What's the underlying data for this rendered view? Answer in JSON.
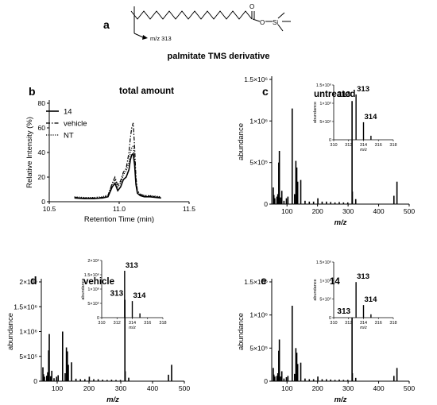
{
  "figure": {
    "panel_a": {
      "letter": "a",
      "compound_title": "palmitate TMS derivative",
      "fragment_label": "m/z 313",
      "atom_O": "O",
      "atom_O2": "O",
      "atom_Si": "Si"
    }
  },
  "chart_data": [
    {
      "id": "b",
      "letter": "b",
      "type": "line",
      "title": "total amount",
      "xlabel": "Retention Time (min)",
      "ylabel": "Relative Intensity (%)",
      "xlim": [
        10.5,
        11.5
      ],
      "ylim": [
        0,
        80
      ],
      "xticks": [
        10.5,
        11.0,
        11.5
      ],
      "xtick_labels": [
        "10.5",
        "11.0",
        "11.5"
      ],
      "yticks": [
        0,
        20,
        40,
        60,
        80
      ],
      "ytick_labels": [
        "0",
        "20",
        "40",
        "60",
        "80"
      ],
      "legend_position": "top-left",
      "series": [
        {
          "name": "14",
          "style": "solid",
          "x": [
            10.68,
            10.75,
            10.82,
            10.88,
            10.92,
            10.95,
            10.97,
            10.99,
            11.01,
            11.03,
            11.05,
            11.07,
            11.08,
            11.09,
            11.1,
            11.11,
            11.12,
            11.13,
            11.15,
            11.18,
            11.22,
            11.26,
            11.3
          ],
          "y": [
            3,
            2.5,
            2.5,
            3,
            4,
            12,
            15,
            9,
            12,
            18,
            20,
            26,
            34,
            38,
            39,
            30,
            14,
            7,
            5,
            4,
            4,
            3.5,
            3
          ]
        },
        {
          "name": "vehicle",
          "style": "dashdot",
          "x": [
            10.68,
            10.75,
            10.82,
            10.88,
            10.92,
            10.95,
            10.97,
            10.99,
            11.01,
            11.03,
            11.05,
            11.07,
            11.08,
            11.09,
            11.1,
            11.11,
            11.12,
            11.13,
            11.15,
            11.18,
            11.22,
            11.26,
            11.3
          ],
          "y": [
            3.5,
            3,
            3,
            3.5,
            5,
            15,
            20,
            13,
            17,
            24,
            27,
            40,
            52,
            60,
            64,
            45,
            20,
            9,
            6,
            5,
            4.5,
            4,
            3.5
          ]
        },
        {
          "name": "NT",
          "style": "dotted",
          "x": [
            10.68,
            10.75,
            10.82,
            10.88,
            10.92,
            10.95,
            10.97,
            10.99,
            11.01,
            11.03,
            11.05,
            11.07,
            11.08,
            11.09,
            11.1,
            11.11,
            11.12,
            11.13,
            11.15,
            11.18,
            11.22,
            11.26,
            11.3
          ],
          "y": [
            4,
            3.5,
            3.5,
            4,
            5.5,
            14,
            18,
            12,
            15,
            22,
            25,
            32,
            40,
            44,
            45,
            36,
            17,
            9,
            6,
            5,
            5,
            4.5,
            4
          ]
        }
      ]
    },
    {
      "id": "c",
      "letter": "c",
      "type": "bar",
      "title": "untreated",
      "xlabel": "m/z",
      "ylabel": "abundance",
      "xlim": [
        50,
        500
      ],
      "ylim": [
        0,
        1500000
      ],
      "xticks": [
        100,
        200,
        300,
        400,
        500
      ],
      "xtick_labels": [
        "100",
        "200",
        "300",
        "400",
        "500"
      ],
      "yticks": [
        0,
        500000,
        1000000,
        1500000
      ],
      "ytick_labels": [
        "0",
        "5×10⁵",
        "1×10⁶",
        "1.5×10⁶"
      ],
      "x": [
        55,
        57,
        60,
        67,
        70,
        73,
        75,
        79,
        83,
        90,
        98,
        103,
        117,
        125,
        129,
        132,
        135,
        145,
        159,
        173,
        187,
        201,
        215,
        229,
        243,
        257,
        271,
        285,
        299,
        313,
        314,
        325,
        450,
        460
      ],
      "y": [
        200000,
        110000,
        70000,
        90000,
        120000,
        500000,
        640000,
        80000,
        160000,
        40000,
        70000,
        90000,
        1150000,
        120000,
        520000,
        440000,
        270000,
        290000,
        40000,
        30000,
        30000,
        70000,
        30000,
        30000,
        25000,
        20000,
        25000,
        20000,
        20000,
        1240000,
        150000,
        60000,
        100000,
        270000
      ],
      "peak_labels": [
        {
          "x": 313,
          "text": "313"
        }
      ],
      "inset": {
        "xlim": [
          310,
          318
        ],
        "ylim": [
          0,
          1500000
        ],
        "xticks": [
          310,
          312,
          314,
          316,
          318
        ],
        "xtick_labels": [
          "310",
          "312",
          "314",
          "316",
          "318"
        ],
        "yticks": [
          0,
          500000,
          1000000,
          1500000
        ],
        "ytick_labels": [
          "0",
          "5×10⁵",
          "1×10⁶",
          "1.5×10⁶"
        ],
        "xlabel": "m/z",
        "ylabel": "abundance",
        "x": [
          313,
          314,
          315
        ],
        "y": [
          1240000,
          480000,
          110000
        ],
        "peak_labels": [
          {
            "x": 313,
            "text": "313"
          },
          {
            "x": 314,
            "text": "314"
          }
        ]
      }
    },
    {
      "id": "d",
      "letter": "d",
      "type": "bar",
      "title": "vehicle",
      "xlabel": "m/z",
      "ylabel": "abundance",
      "xlim": [
        50,
        500
      ],
      "ylim": [
        0,
        2000000
      ],
      "xticks": [
        100,
        200,
        300,
        400,
        500
      ],
      "xtick_labels": [
        "100",
        "200",
        "300",
        "400",
        "500"
      ],
      "yticks": [
        0,
        500000,
        1000000,
        1500000,
        2000000
      ],
      "ytick_labels": [
        "0",
        "5×10⁵",
        "1×10⁶",
        "1.5×10⁶",
        "2×10⁶"
      ],
      "x": [
        55,
        57,
        60,
        67,
        70,
        73,
        75,
        79,
        83,
        90,
        98,
        103,
        117,
        125,
        129,
        132,
        135,
        145,
        159,
        173,
        187,
        201,
        215,
        229,
        243,
        257,
        271,
        285,
        299,
        313,
        314,
        325,
        450,
        460
      ],
      "y": [
        280000,
        140000,
        90000,
        110000,
        180000,
        620000,
        950000,
        100000,
        210000,
        60000,
        90000,
        120000,
        1000000,
        160000,
        680000,
        600000,
        330000,
        380000,
        50000,
        40000,
        40000,
        90000,
        40000,
        40000,
        30000,
        25000,
        30000,
        25000,
        25000,
        1640000,
        200000,
        70000,
        130000,
        330000
      ],
      "peak_labels": [
        {
          "x": 313,
          "text": "313"
        }
      ],
      "inset": {
        "xlim": [
          310,
          318
        ],
        "ylim": [
          0,
          2000000
        ],
        "xticks": [
          310,
          312,
          314,
          316,
          318
        ],
        "xtick_labels": [
          "310",
          "312",
          "314",
          "316",
          "318"
        ],
        "yticks": [
          0,
          500000,
          1000000,
          1500000,
          2000000
        ],
        "ytick_labels": [
          "0",
          "5×10⁵",
          "1×10⁶",
          "1.5×10⁶",
          "2×10⁶"
        ],
        "xlabel": "m/z",
        "ylabel": "abundance",
        "x": [
          313,
          314,
          315
        ],
        "y": [
          1640000,
          580000,
          150000
        ],
        "peak_labels": [
          {
            "x": 313,
            "text": "313"
          },
          {
            "x": 314,
            "text": "314"
          }
        ]
      }
    },
    {
      "id": "e",
      "letter": "e",
      "type": "bar",
      "title": "14",
      "xlabel": "m/z",
      "ylabel": "abundance",
      "xlim": [
        50,
        500
      ],
      "ylim": [
        0,
        1500000
      ],
      "xticks": [
        100,
        200,
        300,
        400,
        500
      ],
      "xtick_labels": [
        "100",
        "200",
        "300",
        "400",
        "500"
      ],
      "yticks": [
        0,
        500000,
        1000000,
        1500000
      ],
      "ytick_labels": [
        "0",
        "5×10⁵",
        "1×10⁶",
        "1.5×10⁶"
      ],
      "x": [
        55,
        57,
        60,
        67,
        70,
        73,
        75,
        79,
        83,
        90,
        98,
        103,
        117,
        125,
        129,
        132,
        135,
        145,
        159,
        173,
        187,
        201,
        215,
        229,
        243,
        257,
        271,
        285,
        299,
        313,
        314,
        325,
        450,
        460
      ],
      "y": [
        200000,
        100000,
        70000,
        80000,
        120000,
        460000,
        630000,
        70000,
        150000,
        40000,
        60000,
        80000,
        1140000,
        110000,
        500000,
        430000,
        260000,
        280000,
        40000,
        30000,
        30000,
        70000,
        30000,
        30000,
        25000,
        20000,
        25000,
        20000,
        20000,
        960000,
        120000,
        50000,
        80000,
        200000
      ],
      "peak_labels": [
        {
          "x": 313,
          "text": "313"
        }
      ],
      "inset": {
        "xlim": [
          310,
          318
        ],
        "ylim": [
          0,
          1500000
        ],
        "xticks": [
          310,
          312,
          314,
          316,
          318
        ],
        "xtick_labels": [
          "310",
          "312",
          "314",
          "316",
          "318"
        ],
        "yticks": [
          0,
          500000,
          1000000,
          1500000
        ],
        "ytick_labels": [
          "0",
          "5×10⁵",
          "1×10⁶",
          "1.5×10⁶"
        ],
        "xlabel": "m/z",
        "ylabel": "abundance",
        "x": [
          313,
          314,
          315
        ],
        "y": [
          960000,
          340000,
          90000
        ],
        "peak_labels": [
          {
            "x": 313,
            "text": "313"
          },
          {
            "x": 314,
            "text": "314"
          }
        ]
      }
    }
  ]
}
